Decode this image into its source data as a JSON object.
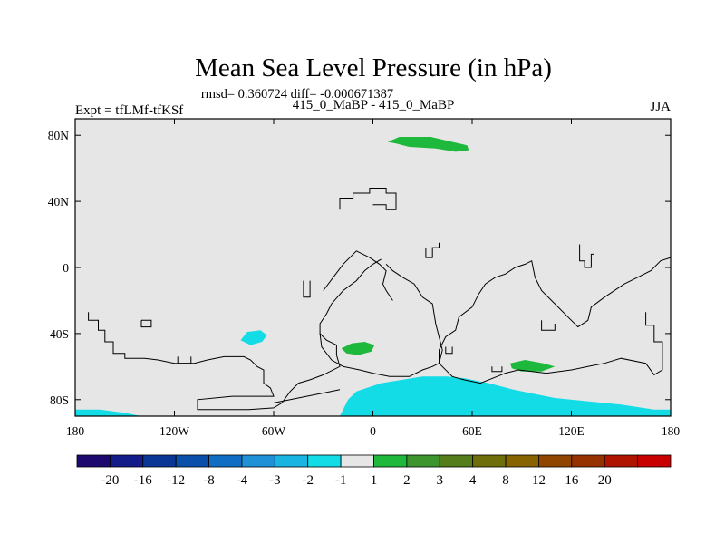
{
  "chart_data": {
    "type": "heatmap",
    "title": "Mean Sea Level Pressure (in hPa)",
    "stats_line": "rmsd= 0.360724 diff= -0.000671387",
    "subtitle": "415_0_MaBP - 415_0_MaBP",
    "left_label": "Expt = tfLMf-tfKSf",
    "right_label": "JJA",
    "xlim": [
      -180,
      180
    ],
    "ylim": [
      -90,
      90
    ],
    "x_ticks": [
      {
        "value": -180,
        "label": "180"
      },
      {
        "value": -120,
        "label": "120W"
      },
      {
        "value": -60,
        "label": "60W"
      },
      {
        "value": 0,
        "label": "0"
      },
      {
        "value": 60,
        "label": "60E"
      },
      {
        "value": 120,
        "label": "120E"
      },
      {
        "value": 180,
        "label": "180"
      }
    ],
    "y_ticks": [
      {
        "value": 80,
        "label": "80N"
      },
      {
        "value": 40,
        "label": "40N"
      },
      {
        "value": 0,
        "label": "0"
      },
      {
        "value": -40,
        "label": "40S"
      },
      {
        "value": -80,
        "label": "80S"
      }
    ],
    "colorbar": {
      "colors": [
        "#1e0a6e",
        "#141c8a",
        "#0a3796",
        "#0a50aa",
        "#0f6ec3",
        "#1e91d7",
        "#19b4e1",
        "#14dce6",
        "#e6e6e6",
        "#1eb93c",
        "#3c962d",
        "#557d19",
        "#6e6e0a",
        "#876400",
        "#914600",
        "#963200",
        "#af1400",
        "#c80000"
      ],
      "labels": [
        "-20",
        "-16",
        "-12",
        "-8",
        "-4",
        "-3",
        "-2",
        "-1",
        "1",
        "2",
        "3",
        "4",
        "8",
        "12",
        "16",
        "20"
      ]
    },
    "regions": [
      {
        "name": "arctic-positive-blob",
        "color": "#1eb93c",
        "points": [
          [
            9,
            76
          ],
          [
            16,
            79
          ],
          [
            35,
            79
          ],
          [
            48,
            76
          ],
          [
            57,
            74
          ],
          [
            58,
            71
          ],
          [
            50,
            70
          ],
          [
            38,
            72
          ],
          [
            22,
            73
          ],
          [
            14,
            75
          ]
        ]
      },
      {
        "name": "south-atlantic-positive-blob",
        "color": "#1eb93c",
        "points": [
          [
            -19,
            -49
          ],
          [
            -13,
            -46
          ],
          [
            -5,
            -45
          ],
          [
            1,
            -47
          ],
          [
            -1,
            -51
          ],
          [
            -9,
            -53
          ],
          [
            -16,
            -52
          ]
        ]
      },
      {
        "name": "south-indian-positive-blob",
        "color": "#1eb93c",
        "points": [
          [
            83,
            -58
          ],
          [
            92,
            -56
          ],
          [
            103,
            -58
          ],
          [
            110,
            -60
          ],
          [
            102,
            -63
          ],
          [
            90,
            -63
          ],
          [
            84,
            -61
          ]
        ]
      },
      {
        "name": "south-pacific-negative-blob",
        "color": "#14dce6",
        "points": [
          [
            -80,
            -44
          ],
          [
            -76,
            -39
          ],
          [
            -68,
            -38
          ],
          [
            -64,
            -41
          ],
          [
            -67,
            -45
          ],
          [
            -74,
            -47
          ]
        ]
      },
      {
        "name": "dateline-negative-strip",
        "color": "#14dce6",
        "points": [
          [
            -180,
            -86
          ],
          [
            -165,
            -86
          ],
          [
            -150,
            -88
          ],
          [
            -140,
            -90
          ],
          [
            -180,
            -90
          ]
        ]
      },
      {
        "name": "antarctic-negative-region",
        "color": "#14dce6",
        "points": [
          [
            -20,
            -90
          ],
          [
            -15,
            -80
          ],
          [
            -10,
            -75
          ],
          [
            5,
            -70
          ],
          [
            30,
            -66
          ],
          [
            45,
            -66
          ],
          [
            55,
            -67
          ],
          [
            70,
            -70
          ],
          [
            85,
            -74
          ],
          [
            95,
            -76
          ],
          [
            110,
            -79
          ],
          [
            130,
            -81
          ],
          [
            150,
            -83
          ],
          [
            170,
            -86
          ],
          [
            180,
            -86
          ],
          [
            180,
            -90
          ]
        ]
      }
    ],
    "boundary_lines": [
      {
        "name": "america-coastline",
        "points": [
          [
            -172,
            -27
          ],
          [
            -172,
            -32
          ],
          [
            -166,
            -32
          ],
          [
            -166,
            -38
          ],
          [
            -162,
            -38
          ],
          [
            -162,
            -45
          ],
          [
            -157,
            -45
          ],
          [
            -157,
            -52
          ],
          [
            -150,
            -52
          ],
          [
            -150,
            -55
          ],
          [
            -138,
            -55
          ],
          [
            -130,
            -56
          ],
          [
            -120,
            -58
          ],
          [
            -108,
            -58
          ],
          [
            -100,
            -56
          ],
          [
            -90,
            -54
          ],
          [
            -78,
            -54
          ],
          [
            -74,
            -56
          ],
          [
            -70,
            -60
          ],
          [
            -66,
            -62
          ],
          [
            -66,
            -70
          ],
          [
            -62,
            -73
          ],
          [
            -60,
            -78
          ],
          [
            -72,
            -78
          ],
          [
            -85,
            -78
          ],
          [
            -106,
            -80
          ],
          [
            -106,
            -86
          ],
          [
            -90,
            -86
          ],
          [
            -75,
            -86
          ],
          [
            -60,
            -85
          ],
          [
            -55,
            -82
          ],
          [
            -50,
            -75
          ],
          [
            -45,
            -70
          ],
          [
            -38,
            -68
          ],
          [
            -30,
            -65
          ],
          [
            -20,
            -60
          ],
          [
            -22,
            -53
          ],
          [
            -22,
            -47
          ],
          [
            -28,
            -44
          ],
          [
            -32,
            -40
          ],
          [
            -32,
            -34
          ],
          [
            -28,
            -28
          ],
          [
            -25,
            -22
          ],
          [
            -18,
            -14
          ],
          [
            -10,
            -8
          ],
          [
            -5,
            -2
          ],
          [
            0,
            2
          ],
          [
            5,
            5
          ]
        ]
      },
      {
        "name": "africa-coastline",
        "points": [
          [
            -32,
            -40
          ],
          [
            -31,
            -48
          ],
          [
            -25,
            -56
          ],
          [
            -18,
            -60
          ],
          [
            -8,
            -62
          ],
          [
            0,
            -64
          ],
          [
            10,
            -66
          ],
          [
            22,
            -66
          ],
          [
            30,
            -62
          ],
          [
            36,
            -60
          ],
          [
            40,
            -58
          ],
          [
            42,
            -50
          ],
          [
            40,
            -42
          ],
          [
            38,
            -34
          ],
          [
            36,
            -22
          ],
          [
            30,
            -18
          ],
          [
            25,
            -10
          ],
          [
            18,
            -6
          ],
          [
            12,
            -2
          ],
          [
            8,
            2
          ]
        ]
      },
      {
        "name": "north-africa-outline",
        "points": [
          [
            -30,
            -14
          ],
          [
            -24,
            -6
          ],
          [
            -18,
            2
          ],
          [
            -10,
            10
          ],
          [
            -2,
            6
          ],
          [
            4,
            2
          ],
          [
            8,
            -2
          ],
          [
            6,
            -10
          ],
          [
            8,
            -14
          ],
          [
            12,
            -20
          ]
        ]
      },
      {
        "name": "antarctic-fragment",
        "points": [
          [
            -60,
            -82
          ],
          [
            -50,
            -80
          ],
          [
            -40,
            -78
          ],
          [
            -30,
            -76
          ],
          [
            -20,
            -74
          ]
        ]
      },
      {
        "name": "asia-coastline",
        "points": [
          [
            165,
            -27
          ],
          [
            165,
            -35
          ],
          [
            170,
            -35
          ],
          [
            170,
            -45
          ],
          [
            175,
            -45
          ],
          [
            175,
            -62
          ],
          [
            170,
            -65
          ],
          [
            165,
            -58
          ],
          [
            150,
            -55
          ],
          [
            140,
            -58
          ],
          [
            130,
            -60
          ],
          [
            120,
            -62
          ],
          [
            105,
            -64
          ],
          [
            88,
            -62
          ],
          [
            80,
            -64
          ],
          [
            75,
            -66
          ],
          [
            65,
            -70
          ],
          [
            55,
            -68
          ],
          [
            48,
            -66
          ],
          [
            40,
            -58
          ],
          [
            40,
            -50
          ],
          [
            44,
            -42
          ],
          [
            50,
            -38
          ],
          [
            52,
            -30
          ],
          [
            60,
            -24
          ],
          [
            64,
            -16
          ],
          [
            68,
            -10
          ],
          [
            74,
            -6
          ],
          [
            80,
            -4
          ],
          [
            86,
            0
          ],
          [
            92,
            2
          ],
          [
            96,
            4
          ],
          [
            98,
            -6
          ],
          [
            102,
            -14
          ],
          [
            110,
            -22
          ],
          [
            118,
            -30
          ],
          [
            124,
            -36
          ],
          [
            130,
            -32
          ],
          [
            132,
            -24
          ],
          [
            140,
            -18
          ],
          [
            152,
            -10
          ],
          [
            160,
            -6
          ],
          [
            168,
            -2
          ],
          [
            174,
            4
          ],
          [
            180,
            6
          ]
        ]
      },
      {
        "name": "greenland-outline",
        "points": [
          [
            -20,
            35
          ],
          [
            -20,
            42
          ],
          [
            -12,
            42
          ],
          [
            -12,
            45
          ],
          [
            -2,
            45
          ],
          [
            -2,
            48
          ],
          [
            8,
            48
          ],
          [
            8,
            45
          ],
          [
            14,
            45
          ],
          [
            14,
            35
          ],
          [
            8,
            35
          ],
          [
            8,
            38
          ],
          [
            0,
            38
          ]
        ]
      },
      {
        "name": "arabia-outline",
        "points": [
          [
            32,
            12
          ],
          [
            32,
            6
          ],
          [
            36,
            6
          ],
          [
            36,
            12
          ],
          [
            40,
            12
          ],
          [
            40,
            15
          ]
        ]
      },
      {
        "name": "japan-outline",
        "points": [
          [
            125,
            14
          ],
          [
            125,
            4
          ],
          [
            128,
            4
          ],
          [
            128,
            0
          ],
          [
            132,
            0
          ],
          [
            132,
            8
          ],
          [
            134,
            8
          ]
        ]
      },
      {
        "name": "caribbean-outline",
        "points": [
          [
            -42,
            -8
          ],
          [
            -42,
            -18
          ],
          [
            -38,
            -18
          ],
          [
            -38,
            -8
          ]
        ]
      },
      {
        "name": "indonesia-outline",
        "points": [
          [
            102,
            -32
          ],
          [
            102,
            -38
          ],
          [
            110,
            -38
          ],
          [
            110,
            -34
          ]
        ]
      },
      {
        "name": "pacific-islands-a",
        "points": [
          [
            -140,
            -32
          ],
          [
            -140,
            -36
          ],
          [
            -134,
            -36
          ],
          [
            -134,
            -32
          ],
          [
            -140,
            -32
          ]
        ]
      },
      {
        "name": "pacific-islands-b",
        "points": [
          [
            -118,
            -54
          ],
          [
            -118,
            -58
          ],
          [
            -110,
            -58
          ],
          [
            -110,
            -54
          ]
        ]
      },
      {
        "name": "madagascar-outline",
        "points": [
          [
            72,
            -60
          ],
          [
            72,
            -63
          ],
          [
            78,
            -63
          ],
          [
            78,
            -60
          ]
        ]
      },
      {
        "name": "kerguelen-outline",
        "points": [
          [
            44,
            -48
          ],
          [
            44,
            -52
          ],
          [
            48,
            -52
          ],
          [
            48,
            -48
          ]
        ]
      }
    ]
  }
}
